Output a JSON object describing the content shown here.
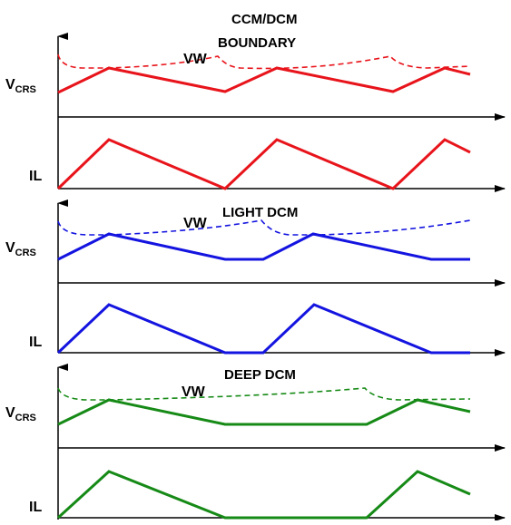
{
  "panels": [
    {
      "title_lines": [
        "CCM/DCM",
        "BOUNDARY"
      ],
      "color": "#e8141b",
      "vw_label": "VW",
      "vcrs_label": {
        "main": "V",
        "sub": "CRS"
      },
      "il_label": "IL",
      "mode": "boundary"
    },
    {
      "title_lines": [
        "LIGHT DCM"
      ],
      "color": "#1414e0",
      "vw_label": "VW",
      "vcrs_label": {
        "main": "V",
        "sub": "CRS"
      },
      "il_label": "IL",
      "mode": "light_dcm"
    },
    {
      "title_lines": [
        "DEEP DCM"
      ],
      "color": "#168a16",
      "vw_label": "VW",
      "vcrs_label": {
        "main": "V",
        "sub": "CRS"
      },
      "il_label": "IL",
      "mode": "deep_dcm"
    }
  ]
}
